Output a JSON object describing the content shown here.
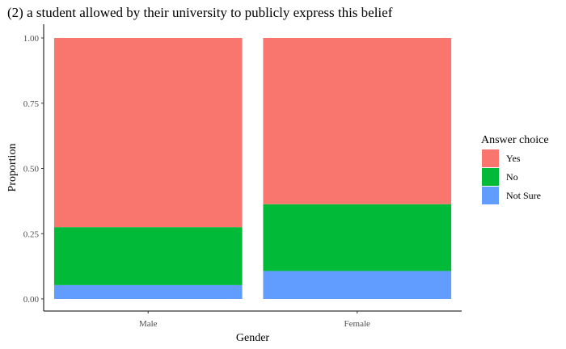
{
  "chart_data": {
    "type": "bar",
    "stacked": true,
    "title": "(2) a student allowed by their university to publicly express this belief",
    "xlabel": "Gender",
    "ylabel": "Proportion",
    "categories": [
      "Male",
      "Female"
    ],
    "ylim": [
      0,
      1
    ],
    "yticks": [
      "0.00",
      "0.25",
      "0.50",
      "0.75",
      "1.00"
    ],
    "ytick_values": [
      0,
      0.25,
      0.5,
      0.75,
      1.0
    ],
    "grid": false,
    "series": [
      {
        "name": "Not Sure",
        "values": [
          0.053,
          0.107
        ]
      },
      {
        "name": "No",
        "values": [
          0.222,
          0.256
        ]
      },
      {
        "name": "Yes",
        "values": [
          0.725,
          0.637
        ]
      }
    ],
    "legend": {
      "title": "Answer choice",
      "placement": "right",
      "entries": [
        "Yes",
        "No",
        "Not Sure"
      ]
    },
    "colors": {
      "Yes": "#F8766D",
      "No": "#00BA38",
      "Not Sure": "#619CFF"
    }
  }
}
